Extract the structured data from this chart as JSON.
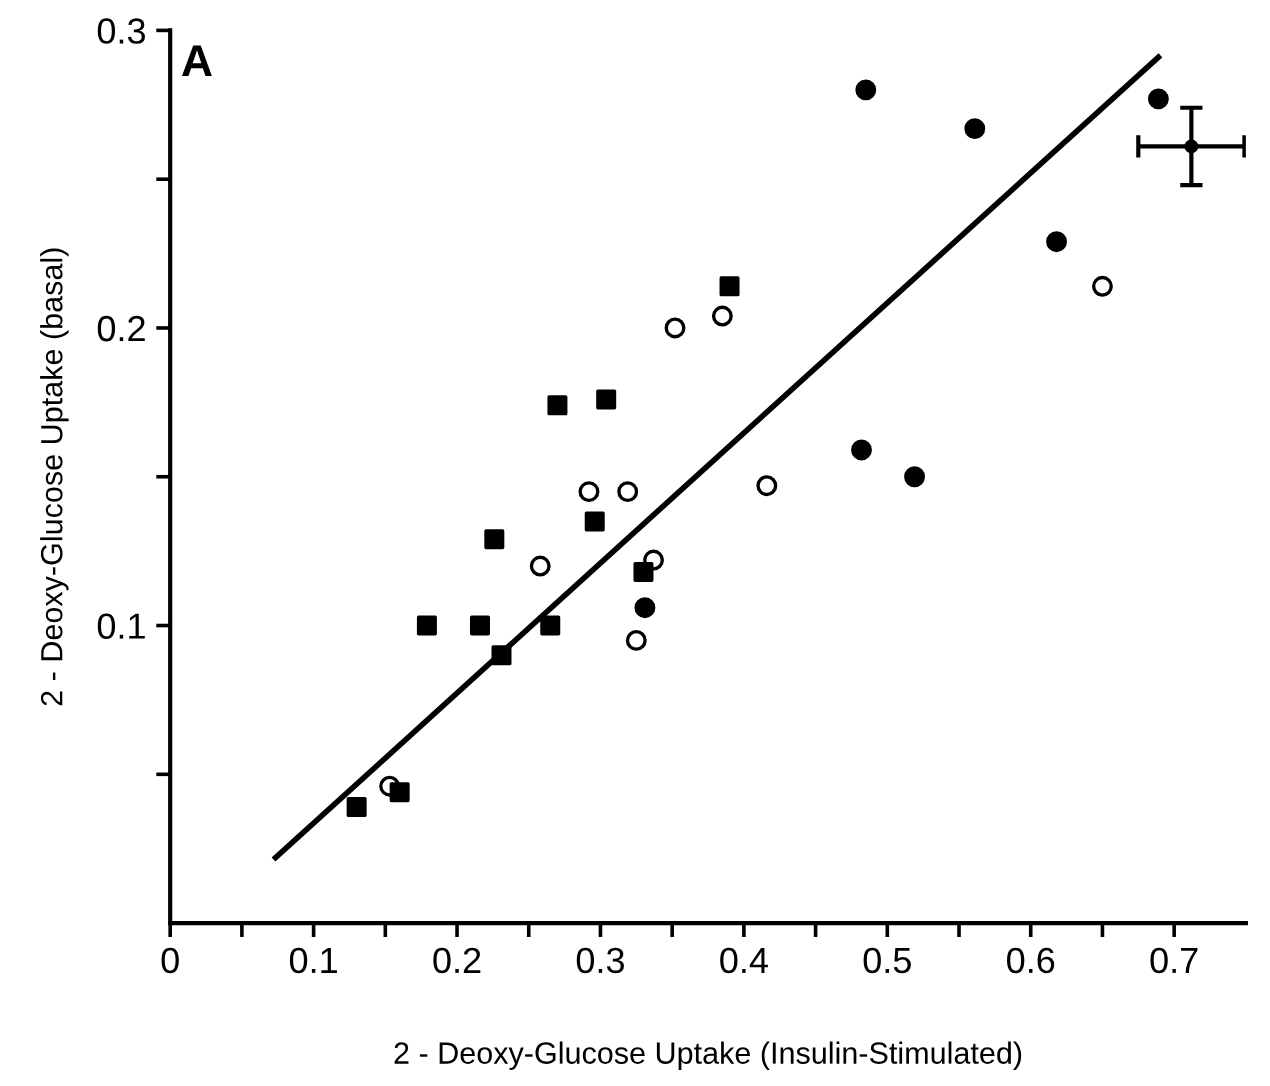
{
  "chart_data": {
    "type": "scatter",
    "xlabel": "2 - Deoxy-Glucose Uptake (Insulin-Stimulated)",
    "ylabel": "2 - Deoxy-Glucose Uptake (basal)",
    "annotations": [
      "A"
    ],
    "xlim": [
      0,
      0.75
    ],
    "ylim": [
      0,
      0.3
    ],
    "xticks": [
      0,
      {
        "value": 0.05,
        "label": null
      },
      0.1,
      {
        "value": 0.15,
        "label": null
      },
      0.2,
      {
        "value": 0.25,
        "label": null
      },
      0.3,
      {
        "value": 0.35,
        "label": null
      },
      0.4,
      {
        "value": 0.45,
        "label": null
      },
      0.5,
      {
        "value": 0.55,
        "label": null
      },
      0.6,
      {
        "value": 0.65,
        "label": null
      },
      0.7
    ],
    "yticks": [
      {
        "value": 0.05,
        "label": null
      },
      0.1,
      {
        "value": 0.15,
        "label": null
      },
      0.2,
      {
        "value": 0.25,
        "label": null
      },
      0.3
    ],
    "grid": false,
    "legend": false,
    "series": [
      {
        "marker": "circle",
        "color": "#000000",
        "x": [
          0.331,
          0.485,
          0.561,
          0.618,
          0.689,
          0.482,
          0.519
        ],
        "values": [
          0.106,
          0.28,
          0.267,
          0.229,
          0.277,
          0.159,
          0.15
        ]
      },
      {
        "marker": "circle",
        "color": "#ffffff",
        "x": [
          0.352,
          0.385,
          0.292,
          0.319,
          0.258,
          0.325,
          0.337,
          0.153,
          0.65,
          0.416
        ],
        "values": [
          0.2,
          0.204,
          0.145,
          0.145,
          0.12,
          0.095,
          0.122,
          0.046,
          0.214,
          0.147
        ]
      },
      {
        "marker": "square",
        "color": "#000000",
        "x": [
          0.27,
          0.304,
          0.296,
          0.226,
          0.33,
          0.179,
          0.216,
          0.265,
          0.231,
          0.16,
          0.13,
          0.39
        ],
        "values": [
          0.174,
          0.176,
          0.135,
          0.129,
          0.118,
          0.1,
          0.1,
          0.1,
          0.09,
          0.044,
          0.039,
          0.214
        ]
      },
      {
        "marker": "circle",
        "color": "#000000",
        "x": [
          0.712
        ],
        "values": [
          0.261
        ],
        "errors": [
          0.013
        ],
        "xerrors": [
          0.037
        ]
      },
      {
        "type": "line",
        "marker": "none",
        "color": "#000000",
        "x": [
          0.0735,
          0.689
        ],
        "values": [
          0.022,
          0.291
        ]
      }
    ]
  }
}
